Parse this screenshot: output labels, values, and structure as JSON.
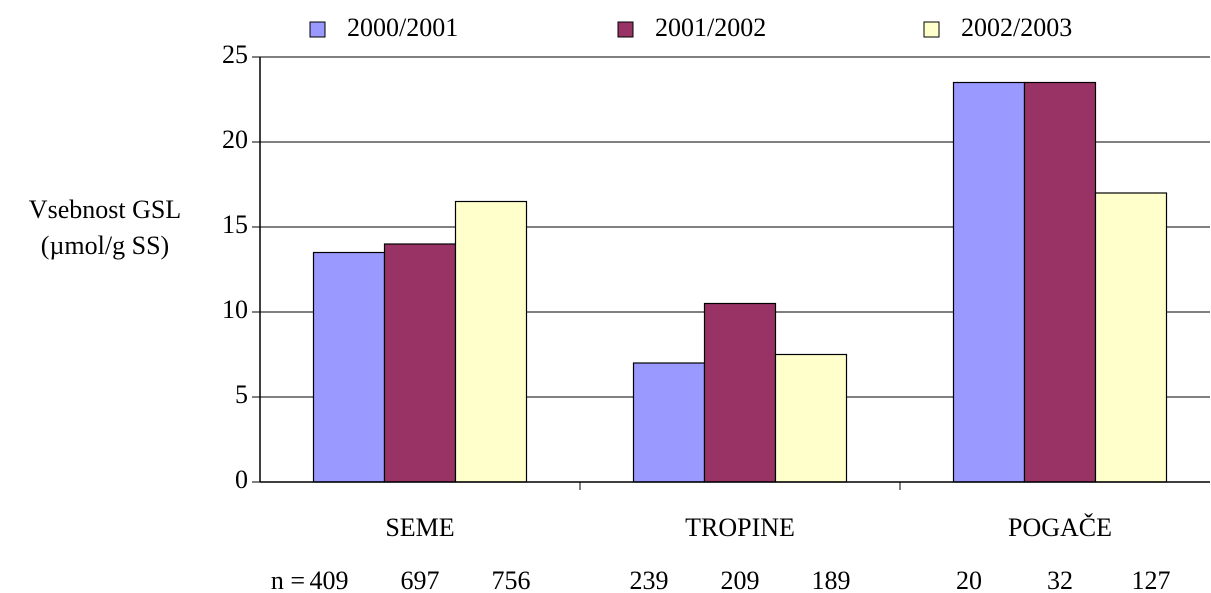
{
  "chart_data": {
    "type": "bar",
    "ylabel": [
      "Vsebnost GSL",
      "(µmol/g SS)"
    ],
    "categories": [
      "SEME",
      "TROPINE",
      "POGAČE"
    ],
    "series": [
      {
        "name": "2000/2001",
        "color": "#9999ff",
        "values": [
          13.5,
          7,
          23.5
        ]
      },
      {
        "name": "2001/2002",
        "color": "#993366",
        "values": [
          14,
          10.5,
          23.5
        ]
      },
      {
        "name": "2002/2003",
        "color": "#ffffcc",
        "values": [
          16.5,
          7.5,
          17
        ]
      }
    ],
    "n_label": "n =",
    "sample_sizes": [
      [
        409,
        697,
        756
      ],
      [
        239,
        209,
        189
      ],
      [
        20,
        32,
        127
      ]
    ],
    "ylim": [
      0,
      25
    ],
    "yticks": [
      0,
      5,
      10,
      15,
      20,
      25
    ],
    "grid": true
  }
}
